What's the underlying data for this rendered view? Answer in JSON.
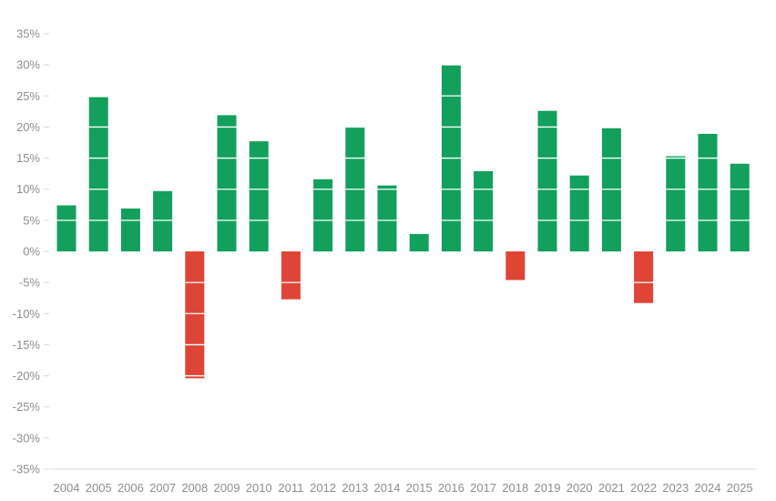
{
  "chart_data": {
    "type": "bar",
    "categories": [
      "2004",
      "2005",
      "2006",
      "2007",
      "2008",
      "2009",
      "2010",
      "2011",
      "2012",
      "2013",
      "2014",
      "2015",
      "2016",
      "2017",
      "2018",
      "2019",
      "2020",
      "2021",
      "2022",
      "2023",
      "2024",
      "2025"
    ],
    "values": [
      7.4,
      24.8,
      6.9,
      9.7,
      -20.4,
      21.9,
      17.7,
      -7.7,
      11.6,
      19.9,
      10.6,
      2.8,
      29.9,
      12.9,
      -4.6,
      22.6,
      12.2,
      19.8,
      -8.3,
      15.3,
      18.9,
      14.1
    ],
    "ylim": [
      -35,
      35
    ],
    "yticks": [
      -35,
      -30,
      -25,
      -20,
      -15,
      -10,
      -5,
      0,
      5,
      10,
      15,
      20,
      25,
      30,
      35
    ],
    "ytick_labels": [
      "-35%",
      "-30%",
      "-25%",
      "-20%",
      "-15%",
      "-10%",
      "-5%",
      "0%",
      "5%",
      "10%",
      "15%",
      "20%",
      "25%",
      "30%",
      "35%"
    ],
    "title": "",
    "xlabel": "",
    "ylabel": "",
    "grid": false,
    "colors": {
      "positive": "#12a05c",
      "negative": "#df4535",
      "axis": "#d9d9d9",
      "label": "#8e8e8e",
      "band_line": "#ffffff"
    }
  }
}
